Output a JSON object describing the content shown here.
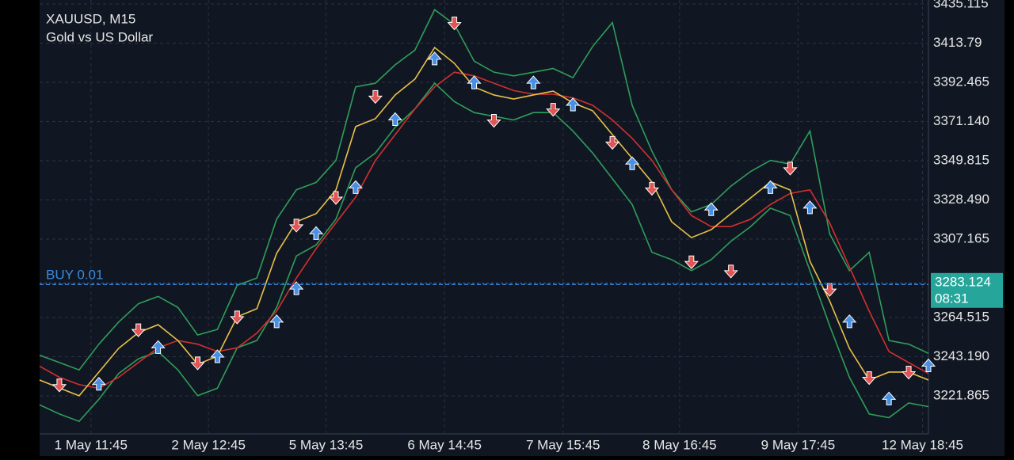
{
  "chart_data": {
    "type": "line",
    "title": "XAUUSD, M15",
    "subtitle": "Gold vs US Dollar",
    "x": [
      0,
      1,
      2,
      3,
      4,
      5,
      6,
      7,
      8,
      9,
      10,
      11,
      12,
      13,
      14,
      15,
      16,
      17,
      18,
      19,
      20,
      21,
      22,
      23,
      24,
      25,
      26,
      27,
      28,
      29,
      30,
      31,
      32,
      33,
      34,
      35,
      36,
      37,
      38,
      39,
      40,
      41,
      42,
      43,
      44,
      45
    ],
    "xlim": [
      0,
      45
    ],
    "xticks": [
      {
        "value": 2.6,
        "label": "1 May 11:45"
      },
      {
        "value": 8.55,
        "label": "2 May 12:45"
      },
      {
        "value": 14.5,
        "label": "5 May 13:45"
      },
      {
        "value": 20.5,
        "label": "6 May 14:45"
      },
      {
        "value": 26.5,
        "label": "7 May 15:45"
      },
      {
        "value": 32.4,
        "label": "8 May 16:45"
      },
      {
        "value": 38.4,
        "label": "9 May 17:45"
      },
      {
        "value": 44.7,
        "label": "12 May 18:45"
      }
    ],
    "ylim": [
      3201.19,
      3437.27
    ],
    "yticks": [
      3435.115,
      3413.79,
      {
        "value": 3392.465,
        "label": "3392.465"
      },
      {
        "value": 3371.14,
        "label": "3371.140"
      },
      3349.815,
      {
        "value": 3328.49,
        "label": "3328.490"
      },
      3307.165,
      3264.515,
      {
        "value": 3243.19,
        "label": "3243.190"
      },
      3221.865
    ],
    "grid": true,
    "series": [
      {
        "color": "#2e9e5b",
        "values": [
          3244,
          3240,
          3236,
          3250,
          3262,
          3272,
          3276,
          3270,
          3255,
          3258,
          3282,
          3286,
          3318,
          3334,
          3338,
          3350,
          3390,
          3392,
          3402,
          3410,
          3432,
          3424,
          3404,
          3398,
          3396,
          3398,
          3400,
          3395,
          3412,
          3425,
          3380,
          3355,
          3334,
          3322,
          3326,
          3336,
          3344,
          3350,
          3348,
          3366,
          3310,
          3290,
          3300,
          3252,
          3250,
          3245
        ]
      },
      {
        "color": "#2e9e5b",
        "values": [
          3217,
          3212,
          3208,
          3220,
          3234,
          3242,
          3246,
          3236,
          3222,
          3226,
          3248,
          3252,
          3270,
          3298,
          3304,
          3318,
          3346,
          3354,
          3368,
          3378,
          3392,
          3382,
          3376,
          3374,
          3372,
          3376,
          3376,
          3366,
          3354,
          3340,
          3326,
          3300,
          3296,
          3290,
          3296,
          3306,
          3314,
          3324,
          3320,
          3290,
          3260,
          3232,
          3212,
          3210,
          3218,
          3216
        ]
      },
      {
        "color": "#d32f2f",
        "values": [
          3238,
          3232,
          3228,
          3226,
          3232,
          3240,
          3248,
          3252,
          3250,
          3246,
          3248,
          3256,
          3268,
          3286,
          3302,
          3316,
          3330,
          3350,
          3364,
          3378,
          3390,
          3398,
          3396,
          3392,
          3388,
          3386,
          3386,
          3384,
          3380,
          3372,
          3362,
          3350,
          3334,
          3320,
          3314,
          3314,
          3318,
          3326,
          3332,
          3334,
          3316,
          3292,
          3268,
          3246,
          3240,
          3234
        ]
      },
      {
        "color": "#e8c04a",
        "values": [
          3230.5,
          3226.2,
          3221.9,
          3234.8,
          3247.7,
          3256.3,
          3260.6,
          3252.0,
          3239.1,
          3243.4,
          3264.9,
          3269.3,
          3299.4,
          3316.6,
          3321.0,
          3333.9,
          3368.4,
          3372.7,
          3385.6,
          3394.2,
          3411.4,
          3402.8,
          3389.9,
          3385.6,
          3383.4,
          3385.6,
          3387.7,
          3381.3,
          3377.0,
          3364.0,
          3351.1,
          3338.2,
          3316.6,
          3308.0,
          3312.3,
          3321.0,
          3329.6,
          3338.2,
          3333.9,
          3295.1,
          3273.5,
          3247.7,
          3230.5,
          3234.8,
          3234.8,
          3230.5
        ]
      }
    ],
    "buy_signals": {
      "color": "#4a90e2",
      "x": [
        3,
        6,
        9,
        12,
        13,
        14,
        16,
        18,
        20,
        22,
        25,
        27,
        30,
        34,
        37,
        39,
        41,
        43,
        45
      ],
      "values": [
        3228,
        3248,
        3243,
        3262,
        3280,
        3310,
        3335,
        3372,
        3405,
        3392,
        3392,
        3380,
        3348,
        3323,
        3335,
        3324,
        3262,
        3220,
        3238
      ]
    },
    "sell_signals": {
      "color": "#e05555",
      "x": [
        1,
        5,
        8,
        10,
        13,
        15,
        17,
        21,
        23,
        26,
        29,
        31,
        33,
        35,
        38,
        40,
        42,
        44
      ],
      "values": [
        3228,
        3258,
        3240,
        3265,
        3315,
        3330,
        3385,
        3425,
        3372,
        3378,
        3360,
        3335,
        3295,
        3290,
        3346,
        3280,
        3232,
        3235
      ]
    },
    "order_label": "BUY 0.01",
    "order_price": 3282.5,
    "current_price": 3283.124,
    "countdown": "08:31"
  }
}
